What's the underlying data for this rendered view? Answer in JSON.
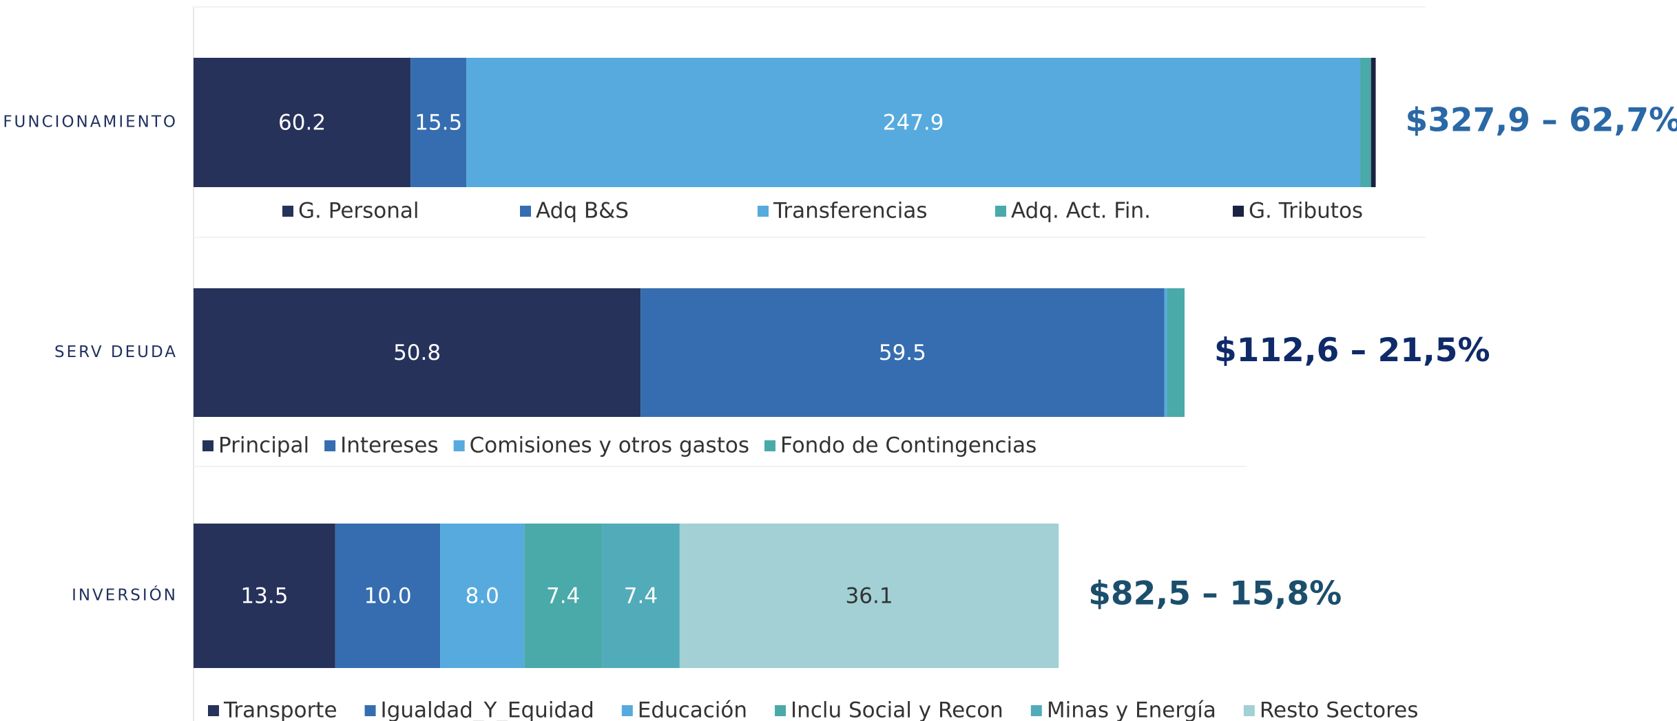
{
  "chart_data": [
    {
      "type": "bar",
      "orientation": "horizontal",
      "stacked": true,
      "categories": [
        "FUNCIONAMIENTO"
      ],
      "xlim": [
        0,
        332
      ],
      "annotation": "$327,9 – 62,7%",
      "annotation_color": "#2a68a6",
      "series": [
        {
          "name": "G. Personal",
          "color": "#27325b",
          "values": [
            60.2
          ]
        },
        {
          "name": "Adq B&S",
          "color": "#356db0",
          "values": [
            15.5
          ]
        },
        {
          "name": "Transferencias",
          "color": "#56aade",
          "values": [
            247.9
          ]
        },
        {
          "name": "Adq. Act. Fin.",
          "color": "#4aa9a9",
          "values": [
            3.0
          ]
        },
        {
          "name": "G. Tributos",
          "color": "#1b2340",
          "values": [
            1.3
          ]
        }
      ]
    },
    {
      "type": "bar",
      "orientation": "horizontal",
      "stacked": true,
      "categories": [
        "SERV DEUDA"
      ],
      "xlim": [
        0,
        136
      ],
      "annotation": "$112,6 – 21,5%",
      "annotation_color": "#0e2a68",
      "series": [
        {
          "name": "Principal",
          "color": "#27325b",
          "values": [
            50.8
          ]
        },
        {
          "name": "Intereses",
          "color": "#356db0",
          "values": [
            59.5
          ]
        },
        {
          "name": "Comisiones y otros gastos",
          "color": "#56aade",
          "values": [
            0.3
          ]
        },
        {
          "name": "Fondo de Contingencias",
          "color": "#4aa9a9",
          "values": [
            2.0
          ]
        }
      ]
    },
    {
      "type": "bar",
      "orientation": "horizontal",
      "stacked": true,
      "categories": [
        "INVERSIÓN"
      ],
      "xlim": [
        0,
        114
      ],
      "annotation": "$82,5 – 15,8%",
      "annotation_color": "#1b4e6c",
      "series": [
        {
          "name": "Transporte",
          "color": "#27325b",
          "values": [
            13.5
          ]
        },
        {
          "name": "Igualdad_Y_Equidad",
          "color": "#356db0",
          "values": [
            10
          ],
          "value_labels": [
            "10.0"
          ]
        },
        {
          "name": "Educación",
          "color": "#56aade",
          "values": [
            8
          ],
          "value_labels": [
            "8.0"
          ]
        },
        {
          "name": "Inclu Social y Recon",
          "color": "#4aa9a9",
          "values": [
            7.4
          ]
        },
        {
          "name": "Minas y Energía",
          "color": "#52abb8",
          "values": [
            7.4
          ]
        },
        {
          "name": "Resto Sectores",
          "color": "#a2d0d5",
          "values": [
            36.1
          ],
          "label_color": "#333333"
        }
      ]
    }
  ]
}
